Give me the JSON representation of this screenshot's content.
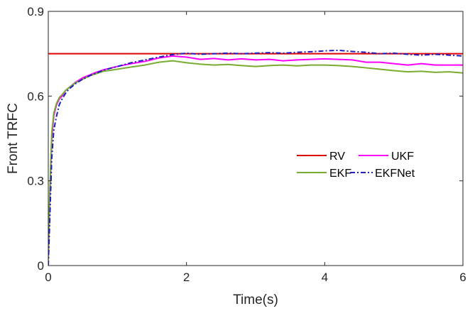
{
  "chart_data": {
    "type": "line",
    "title": "",
    "xlabel": "Time(s)",
    "ylabel": "Front TRFC",
    "xlim": [
      0,
      6
    ],
    "ylim": [
      0,
      0.9
    ],
    "xticks": [
      0,
      2,
      4,
      6
    ],
    "yticks": [
      0,
      0.3,
      0.6,
      0.9
    ],
    "xtick_labels": [
      "0",
      "2",
      "4",
      "6"
    ],
    "ytick_labels": [
      "0",
      "0.3",
      "0.6",
      "0.9"
    ],
    "grid": false,
    "legend_position": "center-right",
    "series": [
      {
        "name": "RV",
        "color": "#e00000",
        "style": "solid",
        "x": [
          0,
          6
        ],
        "y": [
          0.75,
          0.75
        ]
      },
      {
        "name": "UKF",
        "color": "#ff00ff",
        "style": "solid",
        "x": [
          0,
          0.02,
          0.05,
          0.08,
          0.12,
          0.16,
          0.2,
          0.25,
          0.3,
          0.4,
          0.5,
          0.6,
          0.7,
          0.8,
          1.0,
          1.2,
          1.4,
          1.6,
          1.8,
          2.0,
          2.2,
          2.4,
          2.6,
          2.8,
          3.0,
          3.2,
          3.4,
          3.6,
          3.8,
          4.0,
          4.2,
          4.4,
          4.6,
          4.8,
          5.0,
          5.2,
          5.4,
          5.6,
          5.8,
          6.0
        ],
        "y": [
          0.02,
          0.22,
          0.45,
          0.53,
          0.57,
          0.59,
          0.6,
          0.62,
          0.63,
          0.65,
          0.665,
          0.675,
          0.685,
          0.693,
          0.705,
          0.715,
          0.723,
          0.735,
          0.742,
          0.738,
          0.73,
          0.733,
          0.728,
          0.732,
          0.728,
          0.73,
          0.725,
          0.728,
          0.73,
          0.732,
          0.73,
          0.728,
          0.72,
          0.72,
          0.715,
          0.71,
          0.715,
          0.71,
          0.71,
          0.71
        ]
      },
      {
        "name": "EKF",
        "color": "#77ac30",
        "style": "solid",
        "x": [
          0,
          0.02,
          0.05,
          0.08,
          0.12,
          0.16,
          0.2,
          0.25,
          0.3,
          0.4,
          0.5,
          0.6,
          0.7,
          0.8,
          1.0,
          1.2,
          1.4,
          1.6,
          1.8,
          2.0,
          2.2,
          2.4,
          2.6,
          2.8,
          3.0,
          3.2,
          3.4,
          3.6,
          3.8,
          4.0,
          4.2,
          4.4,
          4.6,
          4.8,
          5.0,
          5.2,
          5.4,
          5.6,
          5.8,
          6.0
        ],
        "y": [
          0.02,
          0.25,
          0.47,
          0.54,
          0.575,
          0.595,
          0.605,
          0.62,
          0.63,
          0.648,
          0.66,
          0.672,
          0.68,
          0.688,
          0.695,
          0.703,
          0.71,
          0.72,
          0.725,
          0.718,
          0.713,
          0.71,
          0.712,
          0.708,
          0.705,
          0.708,
          0.71,
          0.707,
          0.71,
          0.71,
          0.708,
          0.705,
          0.7,
          0.695,
          0.69,
          0.686,
          0.688,
          0.684,
          0.686,
          0.682
        ]
      },
      {
        "name": "EKFNet",
        "color": "#1f1fbf",
        "style": "dashdot",
        "x": [
          0,
          0.02,
          0.05,
          0.08,
          0.12,
          0.16,
          0.2,
          0.25,
          0.3,
          0.4,
          0.5,
          0.6,
          0.7,
          0.8,
          1.0,
          1.2,
          1.4,
          1.6,
          1.8,
          2.0,
          2.2,
          2.4,
          2.6,
          2.8,
          3.0,
          3.2,
          3.4,
          3.6,
          3.8,
          4.0,
          4.2,
          4.4,
          4.6,
          4.8,
          5.0,
          5.2,
          5.4,
          5.6,
          5.8,
          6.0
        ],
        "y": [
          0.0,
          0.15,
          0.38,
          0.48,
          0.53,
          0.57,
          0.59,
          0.61,
          0.625,
          0.645,
          0.66,
          0.672,
          0.682,
          0.692,
          0.705,
          0.718,
          0.728,
          0.738,
          0.747,
          0.752,
          0.748,
          0.75,
          0.752,
          0.75,
          0.752,
          0.754,
          0.752,
          0.755,
          0.757,
          0.76,
          0.762,
          0.758,
          0.755,
          0.75,
          0.752,
          0.748,
          0.745,
          0.748,
          0.745,
          0.742
        ]
      }
    ]
  }
}
